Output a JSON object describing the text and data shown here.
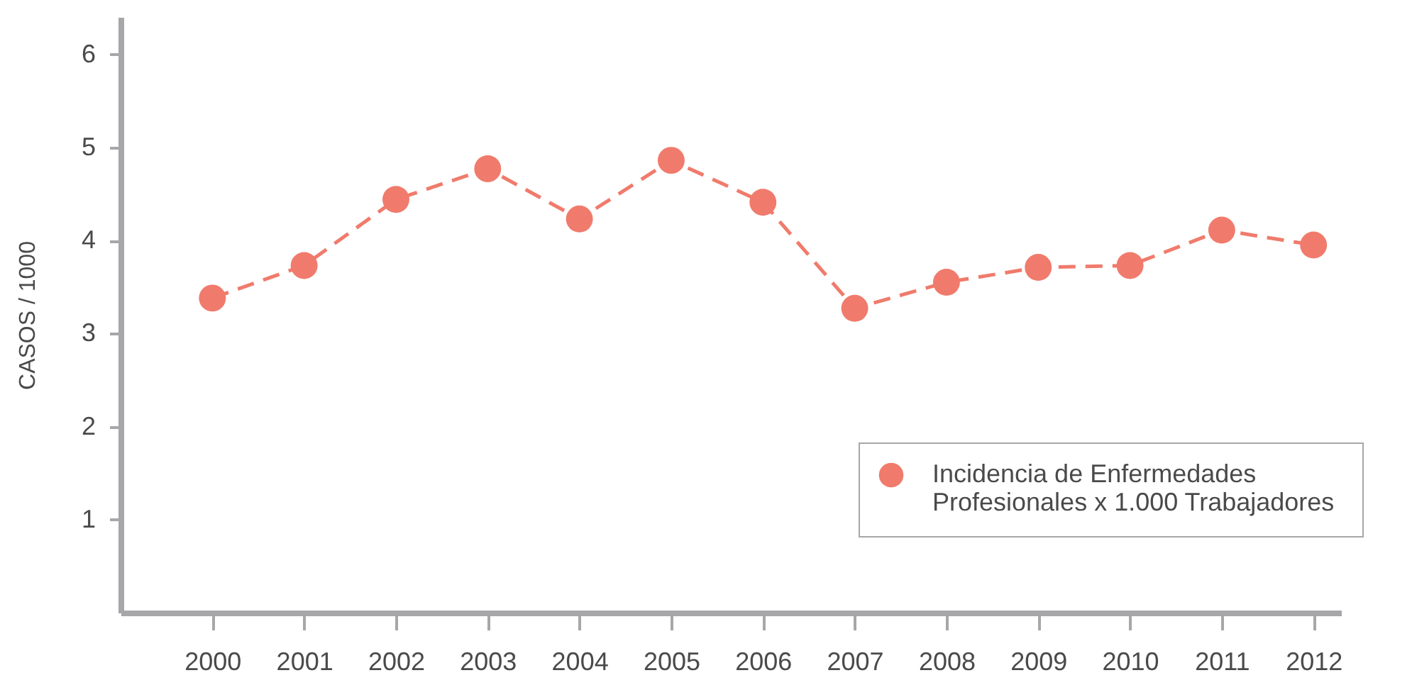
{
  "chart_data": {
    "type": "line",
    "ylabel": "CASOS / 1000",
    "x": [
      2000,
      2001,
      2002,
      2003,
      2004,
      2005,
      2006,
      2007,
      2008,
      2009,
      2010,
      2011,
      2012
    ],
    "series": [
      {
        "name": "Incidencia de Enfermedades\nProfesionales x 1.000  Trabajadores",
        "color": "#f07b6c",
        "values": [
          3.38,
          3.73,
          4.44,
          4.77,
          4.23,
          4.86,
          4.41,
          3.27,
          3.55,
          3.71,
          3.73,
          4.11,
          3.95
        ]
      }
    ],
    "xlim": [
      1999,
      2012.3
    ],
    "xticks": [
      2000,
      2001,
      2002,
      2003,
      2004,
      2005,
      2006,
      2007,
      2008,
      2009,
      2010,
      2011,
      2012
    ],
    "ylim": [
      0,
      6.4
    ],
    "yticks": [
      1,
      2,
      3,
      4,
      5,
      6
    ],
    "grid": false,
    "legend": "bottom right",
    "marker": "circle",
    "line_style": "dashed"
  }
}
